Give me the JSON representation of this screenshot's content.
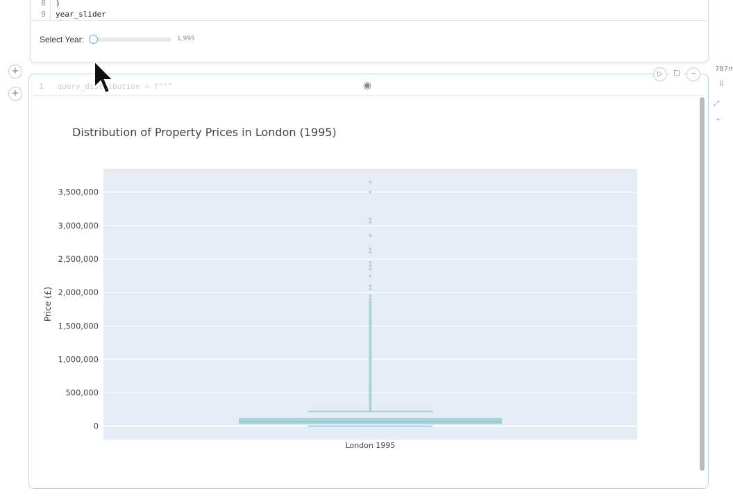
{
  "cell1": {
    "lines": [
      {
        "n": "8",
        "code": ")"
      },
      {
        "n": "9",
        "code": "year_slider"
      }
    ],
    "slider": {
      "label": "Select Year:",
      "value_text": "1,995",
      "value": 1995,
      "fraction": 0.0
    }
  },
  "cell2": {
    "code_line": {
      "n": "1",
      "code": "query_distribution = f\"\"\""
    },
    "memory": "787m"
  },
  "icons": [
    "plus-icon",
    "play-icon",
    "stop-icon",
    "minus-icon",
    "eye-icon",
    "drag-icon",
    "expand-icon",
    "collapse-icon"
  ],
  "chart_data": {
    "type": "box",
    "title": "Distribution of Property Prices in London (1995)",
    "xlabel": "",
    "ylabel": "Price (£)",
    "categories": [
      "London 1995"
    ],
    "ylim": [
      -200000,
      3850000
    ],
    "yticks": [
      "0",
      "500,000",
      "1,000,000",
      "1,500,000",
      "2,000,000",
      "2,500,000",
      "3,000,000",
      "3,500,000"
    ],
    "box": {
      "q1": 40000,
      "median": 70000,
      "q3": 115000,
      "lower_fence": 0,
      "upper_fence": 220000
    },
    "outliers": [
      3650000,
      3500000,
      3100000,
      3050000,
      2850000,
      2650000,
      2600000,
      2450000,
      2400000,
      2350000,
      2250000,
      2100000,
      2050000,
      1950000,
      1900000
    ],
    "color": "#a8d4dc",
    "plot_bg": "#e5ecf6",
    "grid": true
  }
}
